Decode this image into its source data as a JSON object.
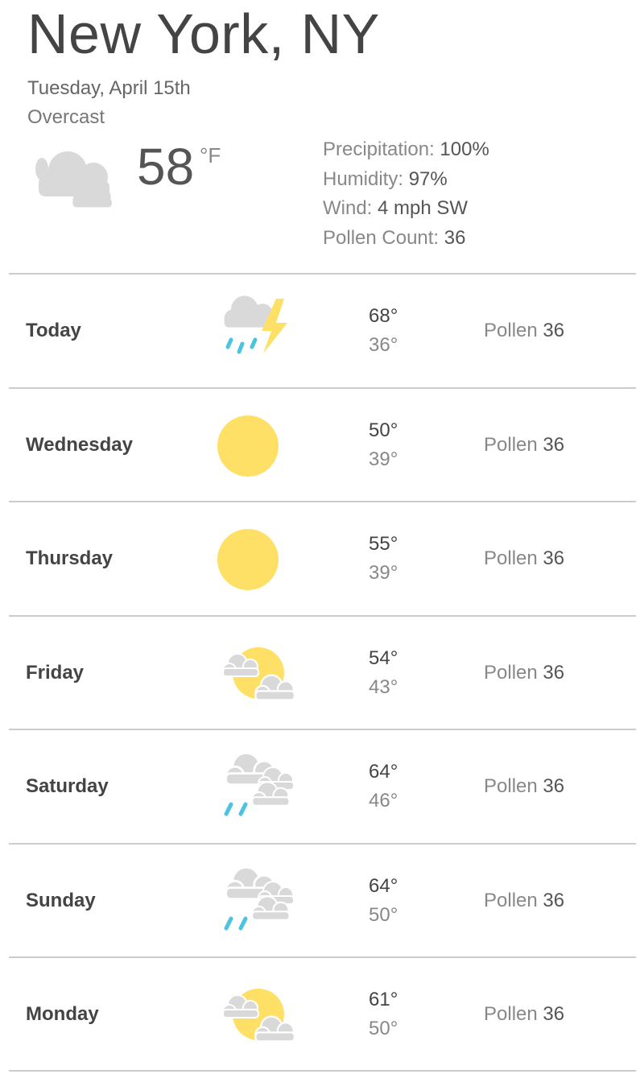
{
  "header": {
    "city": "New York, NY",
    "date": "Tuesday, April 15th",
    "condition": "Overcast",
    "temperature": "58",
    "unit": "°F",
    "icon": "overcast-icon"
  },
  "stats": [
    {
      "label": "Precipitation: ",
      "value": "100%"
    },
    {
      "label": "Humidity: ",
      "value": "97%"
    },
    {
      "label": "Wind: ",
      "value": "4 mph SW"
    },
    {
      "label": "Pollen Count: ",
      "value": "36"
    }
  ],
  "colors": {
    "sun": "#ffe066",
    "cloud": "#d9d9d9",
    "rain": "#4cc3e0",
    "divider": "#cccccc"
  },
  "forecast": [
    {
      "day": "Today",
      "icon": "thunderstorm",
      "high": "68°",
      "low": "36°",
      "pollen_label": "Pollen ",
      "pollen": "36"
    },
    {
      "day": "Wednesday",
      "icon": "sunny",
      "high": "50°",
      "low": "39°",
      "pollen_label": "Pollen ",
      "pollen": "36"
    },
    {
      "day": "Thursday",
      "icon": "sunny",
      "high": "55°",
      "low": "39°",
      "pollen_label": "Pollen ",
      "pollen": "36"
    },
    {
      "day": "Friday",
      "icon": "partly-cloudy",
      "high": "54°",
      "low": "43°",
      "pollen_label": "Pollen ",
      "pollen": "36"
    },
    {
      "day": "Saturday",
      "icon": "rain",
      "high": "64°",
      "low": "46°",
      "pollen_label": "Pollen ",
      "pollen": "36"
    },
    {
      "day": "Sunday",
      "icon": "rain",
      "high": "64°",
      "low": "50°",
      "pollen_label": "Pollen ",
      "pollen": "36"
    },
    {
      "day": "Monday",
      "icon": "partly-cloudy",
      "high": "61°",
      "low": "50°",
      "pollen_label": "Pollen ",
      "pollen": "36"
    }
  ]
}
